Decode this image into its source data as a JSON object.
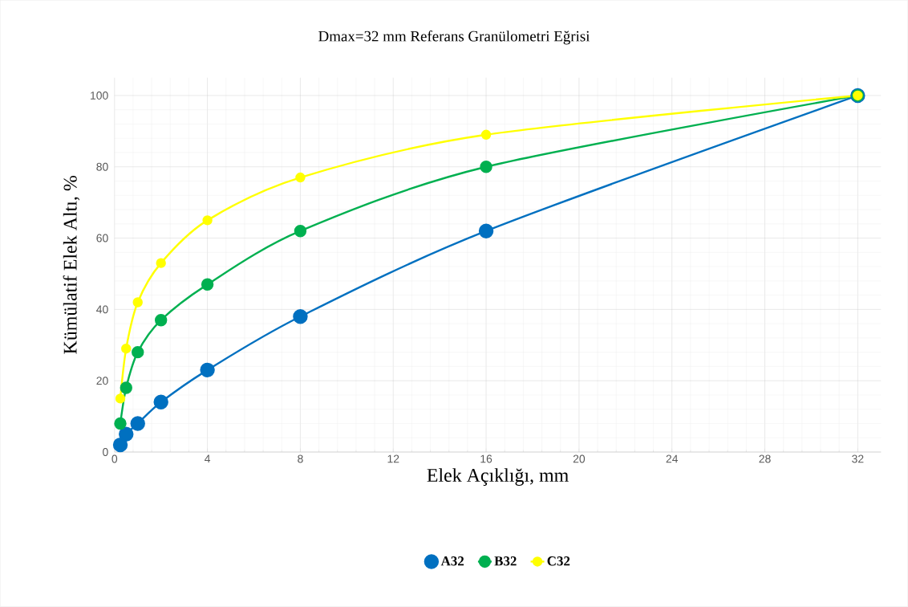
{
  "chart_data": {
    "type": "line",
    "title": "Dmax=32 mm Referans Granülometri Eğrisi",
    "xlabel": "Elek Açıklığı, mm",
    "ylabel": "Kümülatif Elek Altı, %",
    "x": [
      0.25,
      0.5,
      1,
      2,
      4,
      8,
      16,
      32
    ],
    "series": [
      {
        "name": "A32",
        "color": "#0070c0",
        "values": [
          2,
          5,
          8,
          14,
          23,
          38,
          62,
          100
        ]
      },
      {
        "name": "B32",
        "color": "#00b050",
        "values": [
          8,
          18,
          28,
          37,
          47,
          62,
          80,
          100
        ]
      },
      {
        "name": "C32",
        "color": "#ffff00",
        "values": [
          15,
          29,
          42,
          53,
          65,
          77,
          89,
          100
        ]
      }
    ],
    "xlim": [
      0,
      33
    ],
    "ylim": [
      0,
      105
    ],
    "xticks": [
      0,
      4,
      8,
      12,
      16,
      20,
      24,
      28,
      32
    ],
    "yticks": [
      0,
      20,
      40,
      60,
      80,
      100
    ],
    "grid": true,
    "legend": "bottom",
    "marker": "circle",
    "line_style": "solid"
  }
}
